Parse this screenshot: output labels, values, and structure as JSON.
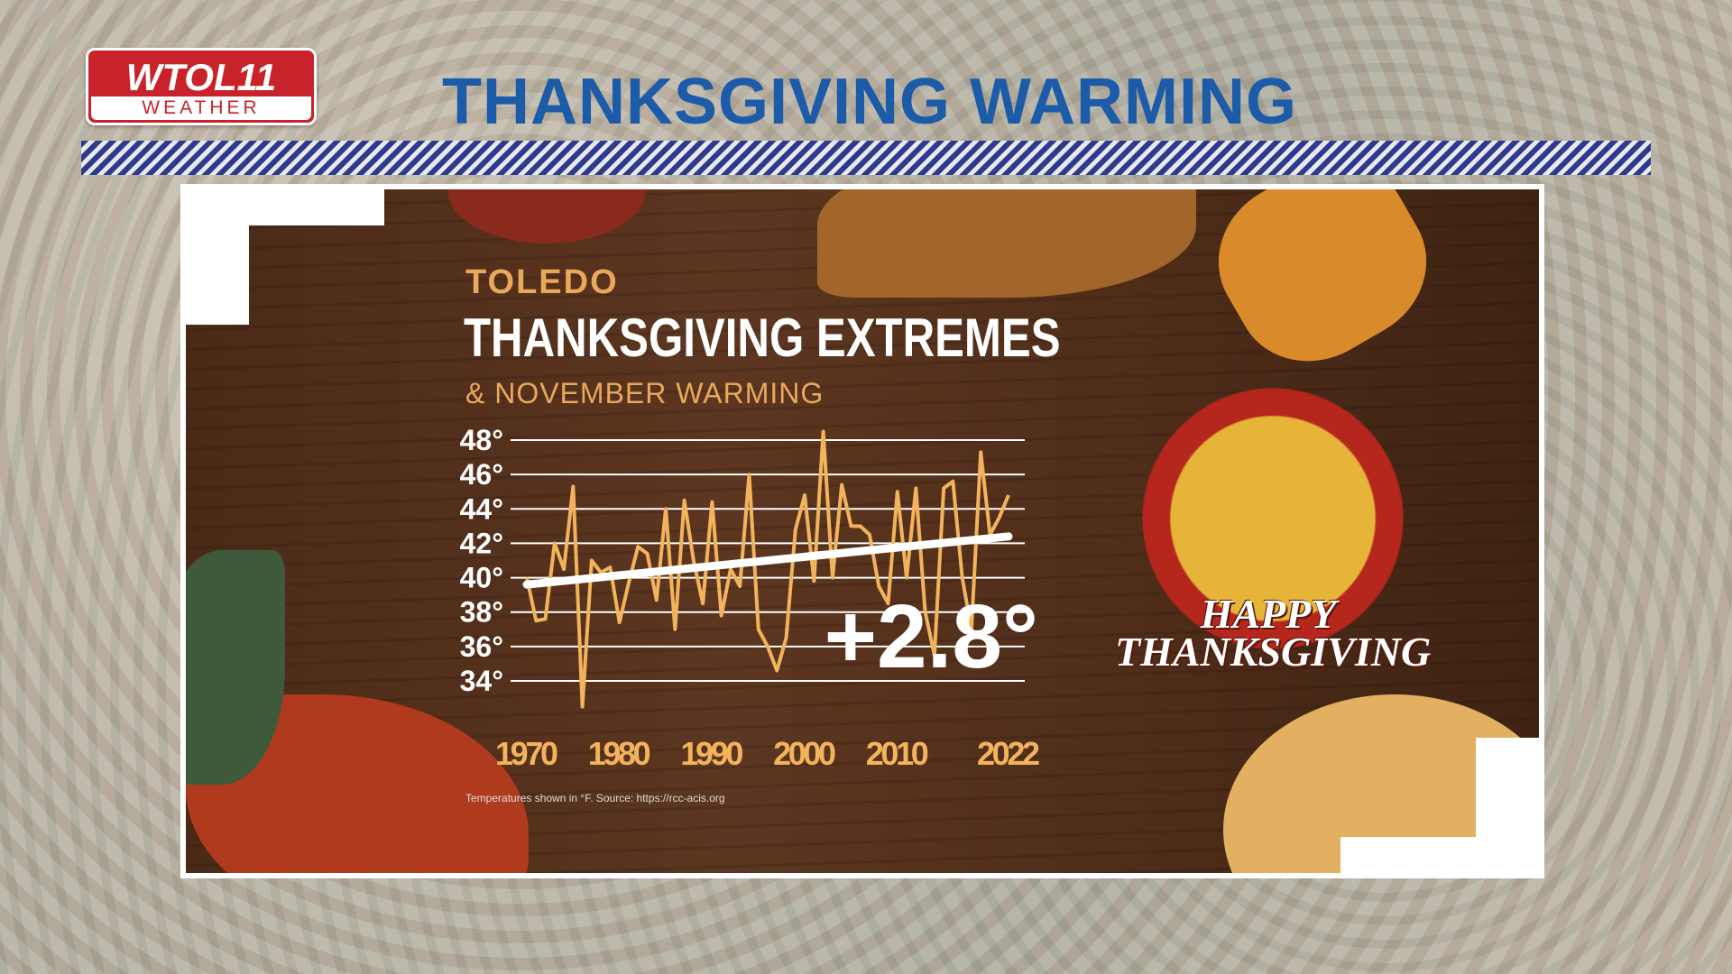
{
  "logo": {
    "name": "WTOL11",
    "sub": "WEATHER"
  },
  "header": {
    "title": "THANKSGIVING WARMING"
  },
  "graphic": {
    "location": "TOLEDO",
    "title": "THANKSGIVING EXTREMES",
    "subtitle": "& NOVEMBER WARMING",
    "change": "+2.8°",
    "source": "Temperatures shown in °F. Source: https://rcc-acis.org",
    "badge": [
      "HAPPY",
      "THANKSGIVING"
    ]
  },
  "chart_data": {
    "type": "line",
    "title": "",
    "xlabel": "",
    "ylabel": "",
    "ylim": [
      34,
      48
    ],
    "xlim": [
      1970,
      2022
    ],
    "grid": true,
    "yticks": [
      "34°",
      "36°",
      "38°",
      "40°",
      "42°",
      "44°",
      "46°",
      "48°"
    ],
    "xticks": [
      "1970",
      "1980",
      "1990",
      "2000",
      "2010",
      "2022"
    ],
    "x_start": 1970,
    "series": [
      {
        "color": "#f2b35c",
        "values": [
          40,
          37.5,
          37.6,
          42,
          40.5,
          45.3,
          32.5,
          41,
          40.3,
          40.6,
          37.4,
          39.7,
          41.8,
          41.4,
          38.7,
          44,
          37,
          44.5,
          41,
          38.5,
          44.4,
          37.8,
          40.5,
          39.5,
          46,
          37,
          36,
          34.6,
          36.5,
          42.8,
          44.8,
          39.8,
          48.5,
          40,
          45.4,
          43,
          43,
          42.5,
          39.5,
          38.5,
          45,
          40,
          45.2,
          38,
          35.5,
          45.2,
          45.6,
          40,
          37,
          47.3,
          42.5,
          43.5,
          44.8
        ]
      }
    ],
    "trend": {
      "color": "#ffffff",
      "start": 39.6,
      "end": 42.4
    }
  }
}
